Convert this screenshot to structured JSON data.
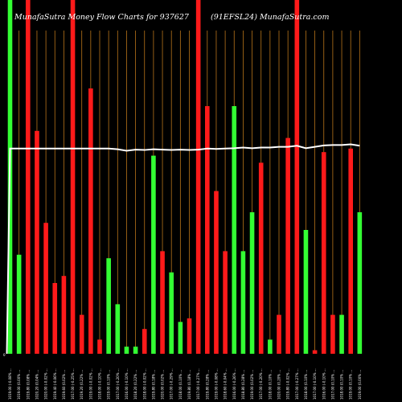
{
  "header": {
    "title_left": "MunafaSutra  Money Flow  Charts for 937627",
    "title_right": "(91EFSL24) MunafaSutra.com"
  },
  "colors": {
    "background": "#000000",
    "up": "#33ff33",
    "down": "#ff1a1a",
    "grid": "#b8741a",
    "line": "#ffffff"
  },
  "chart_data": {
    "type": "bar",
    "title": "MunafaSutra  Money Flow  Charts for 937627",
    "subtitle": "(91EFSL24) MunafaSutra.com",
    "ylim": [
      0,
      100
    ],
    "zero_label": "0",
    "grid": "vertical",
    "x_labels": [
      "1019.00 (-0.08% ...",
      "1019.00 (0.00% ...",
      "1019.80 (0.08% ...",
      "1020.20 (0.04% ...",
      "1020.00 (-0.02% ...",
      "1019.40 (-0.06% ...",
      "1019.60 (0.02% ...",
      "1017.00 (-0.25% ...",
      "1019.20 (0.22% ...",
      "1019.00 (-0.02% ...",
      "1018.00 (-0.10% ...",
      "1019.00 (0.10% ...",
      "1017.00 (-0.20% ...",
      "1016.00 (-0.10% ...",
      "1018.20 (0.22% ...",
      "1018.00 (-0.02% ...",
      "1019.80 (0.18% ...",
      "1020.00 (0.02% ...",
      "1017.00 (-0.29% ...",
      "1018.00 (0.10% ...",
      "1019.80 (0.18% ...",
      "1017.00 (-0.27% ...",
      "1019.80 (0.28% ...",
      "1019.00 (-0.08% ...",
      "1018.60 (-0.04% ...",
      "1016.00 (-0.26% ...",
      "1018.80 (0.28% ...",
      "1019.00 (0.02% ...",
      "1017.00 (-0.20% ...",
      "1018.00 (0.10% ...",
      "1020.00 (0.20% ...",
      "1019.80 (-0.02% ...",
      "1017.00 (-0.27% ...",
      "1018.00 (0.10% ...",
      "1017.00 (-0.10% ...",
      "1016.00 (-0.10% ...",
      "1017.00 (0.10% ...",
      "1018.00 (0.10% ...",
      "1019.00 (0.10% ...",
      "1019.00 (0.00% ..."
    ],
    "series": [
      {
        "up": [
          true,
          true,
          false,
          false,
          false,
          false,
          false,
          false,
          false,
          false,
          false,
          true,
          true,
          true,
          true,
          false,
          true,
          false,
          true,
          true,
          false,
          false,
          false,
          false,
          false,
          true,
          true,
          true,
          false,
          true,
          false,
          false,
          false,
          true,
          false,
          false,
          false,
          true,
          false,
          true
        ],
        "values": [
          100,
          28,
          100,
          63,
          37,
          20,
          22,
          100,
          11,
          75,
          4,
          27,
          14,
          2,
          2,
          7,
          56,
          29,
          23,
          9,
          10,
          100,
          70,
          46,
          29,
          70,
          29,
          40,
          54,
          4,
          11,
          61,
          100,
          35,
          1,
          57,
          11,
          11,
          58,
          40
        ]
      },
      {
        "name": "",
        "values": [
          58,
          58,
          58,
          58,
          58,
          58,
          58,
          58,
          58,
          58,
          58,
          58,
          57.8,
          57.4,
          57.7,
          57.6,
          57.8,
          57.7,
          57.6,
          57.7,
          57.6,
          57.7,
          58,
          57.9,
          58,
          58.1,
          58.3,
          58.1,
          58.3,
          58.3,
          58.5,
          58.5,
          58.8,
          58.1,
          58.5,
          58.9,
          59,
          59,
          59.2,
          58.8
        ]
      }
    ]
  }
}
